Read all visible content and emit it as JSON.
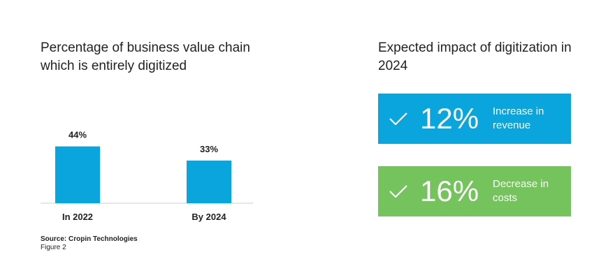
{
  "chart_data": [
    {
      "type": "bar",
      "title": "Percentage of business value chain which is entirely digitized",
      "categories": [
        "In 2022",
        "By 2024"
      ],
      "values": [
        44,
        33
      ],
      "data_labels": [
        "44%",
        "33%"
      ],
      "xlabel": "",
      "ylabel": "",
      "grid": false,
      "color": "#0aa5dc"
    }
  ],
  "impact": {
    "title": "Expected impact of digitization in 2024",
    "cards": [
      {
        "value": "12%",
        "description": "Increase in revenue",
        "color": "#0aa5dc",
        "icon": "check-icon"
      },
      {
        "value": "16%",
        "description": "Decrease in costs",
        "color": "#74c35c",
        "icon": "check-icon"
      }
    ]
  },
  "footer": {
    "source": "Source: Cropin Technologies",
    "figure": "Figure 2"
  }
}
